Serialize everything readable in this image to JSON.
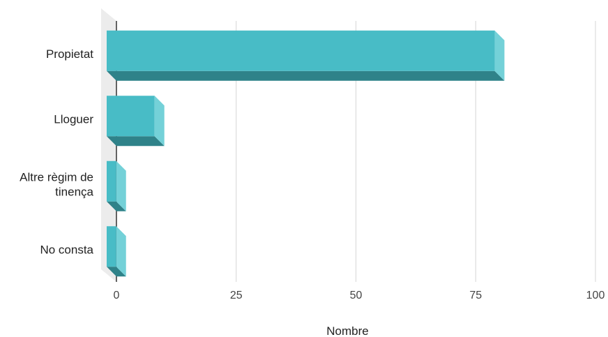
{
  "chart_data": {
    "type": "bar",
    "orientation": "horizontal",
    "style": "3d",
    "categories": [
      "Propietat",
      "Lloguer",
      "Altre règim de tinença",
      "No consta"
    ],
    "category_label_lines": [
      [
        "Propietat"
      ],
      [
        "Lloguer"
      ],
      [
        "Altre règim de",
        "tinença"
      ],
      [
        "No consta"
      ]
    ],
    "values": [
      81,
      10,
      2,
      2
    ],
    "xlabel": "Nombre",
    "ylabel": "",
    "xlim": [
      0,
      100
    ],
    "x_ticks": [
      0,
      25,
      50,
      75,
      100
    ],
    "grid": true,
    "colors": {
      "bar_front": "#48bcc6",
      "bar_top": "#74d1d8",
      "bar_bottom": "#2f8289",
      "grid": "#d6d6d6",
      "wall": "#ececec",
      "axis": "#333333"
    }
  }
}
